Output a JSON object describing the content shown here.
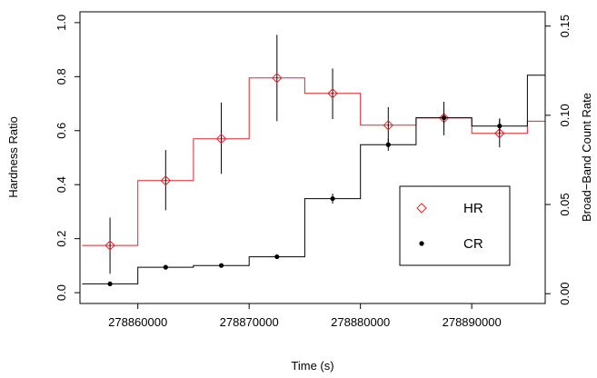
{
  "chart_data": {
    "type": "line",
    "xlabel": "Time (s)",
    "ylabel_left": "Hardness Ratio",
    "ylabel_right": "Broad−Band Count Rate",
    "xlim": [
      278854800,
      278896600
    ],
    "ylim_left": [
      -0.04,
      1.04
    ],
    "ylim_right": [
      -0.0055,
      0.158
    ],
    "x_ticks": [
      278860000,
      278870000,
      278880000,
      278890000
    ],
    "x_tick_labels": [
      "278860000",
      "278870000",
      "278880000",
      "278890000"
    ],
    "y_left_ticks": [
      0.0,
      0.2,
      0.4,
      0.6,
      0.8,
      1.0
    ],
    "y_left_tick_labels": [
      "0.0",
      "0.2",
      "0.4",
      "0.6",
      "0.8",
      "1.0"
    ],
    "y_right_ticks": [
      0.0,
      0.05,
      0.1,
      0.15
    ],
    "y_right_tick_labels": [
      "0.00",
      "0.05",
      "0.10",
      "0.15"
    ],
    "legend": {
      "placement": "center-right",
      "entries": [
        {
          "label": "HR",
          "marker": "diamond-open",
          "color": "#e8232a"
        },
        {
          "label": "CR",
          "marker": "dot",
          "color": "#000000"
        }
      ]
    },
    "series": [
      {
        "name": "HR",
        "axis": "left",
        "color": "#e8232a",
        "marker": "diamond-open",
        "x": [
          278857500,
          278862500,
          278867500,
          278872500,
          278877500,
          278882500,
          278887500,
          278892500
        ],
        "y": [
          0.175,
          0.415,
          0.57,
          0.795,
          0.738,
          0.62,
          0.647,
          0.59
        ],
        "err_low": [
          0.07,
          0.305,
          0.44,
          0.635,
          0.643,
          0.542,
          0.583,
          0.538
        ],
        "err_high": [
          0.278,
          0.528,
          0.704,
          0.955,
          0.83,
          0.687,
          0.707,
          0.645
        ],
        "step_edges": [
          278855000,
          278860000,
          278865000,
          278870000,
          278875000,
          278880000,
          278885000,
          278890000,
          278895000,
          278896600
        ],
        "step_levels": [
          0.175,
          0.415,
          0.57,
          0.795,
          0.738,
          0.62,
          0.647,
          0.59,
          0.635
        ]
      },
      {
        "name": "CR",
        "axis": "right",
        "color": "#000000",
        "marker": "dot",
        "x": [
          278857500,
          278862500,
          278867500,
          278872500,
          278877500,
          278882500,
          278887500,
          278892500
        ],
        "y": [
          0.0055,
          0.0148,
          0.0158,
          0.0207,
          0.0533,
          0.0835,
          0.0986,
          0.094
        ],
        "err_low": [
          0.0055,
          0.0148,
          0.0158,
          0.0207,
          0.0505,
          0.0801,
          0.0943,
          0.0901
        ],
        "err_high": [
          0.0055,
          0.0148,
          0.0158,
          0.0207,
          0.0561,
          0.0869,
          0.1029,
          0.0979
        ],
        "step_edges": [
          278855000,
          278860000,
          278865000,
          278870000,
          278875000,
          278880000,
          278885000,
          278890000,
          278895000,
          278896600
        ],
        "step_levels": [
          0.0055,
          0.0148,
          0.0158,
          0.0207,
          0.0533,
          0.0835,
          0.0986,
          0.094,
          0.1225
        ]
      }
    ]
  }
}
